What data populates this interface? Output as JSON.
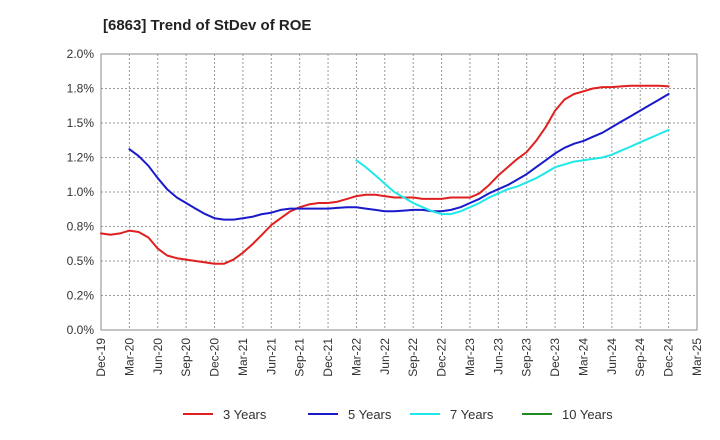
{
  "chart_data": {
    "type": "line",
    "title": "[6863]  Trend of StDev of ROE",
    "xlabel": "",
    "ylabel": "",
    "x_ticks": [
      "Dec-19",
      "Mar-20",
      "Jun-20",
      "Sep-20",
      "Dec-20",
      "Mar-21",
      "Jun-21",
      "Sep-21",
      "Dec-21",
      "Mar-22",
      "Jun-22",
      "Sep-22",
      "Dec-22",
      "Mar-23",
      "Jun-23",
      "Sep-23",
      "Dec-23",
      "Mar-24",
      "Jun-24",
      "Sep-24",
      "Dec-24",
      "Mar-25"
    ],
    "y_ticks": [
      "0.0%",
      "0.2%",
      "0.5%",
      "0.8%",
      "1.0%",
      "1.2%",
      "1.5%",
      "1.8%",
      "2.0%"
    ],
    "ylim": [
      0,
      2.0
    ],
    "grid": true,
    "legend_position": "bottom",
    "series": [
      {
        "name": "3 Years",
        "color": "#e02020",
        "points": [
          [
            0,
            0.7
          ],
          [
            0.33,
            0.69
          ],
          [
            0.67,
            0.7
          ],
          [
            1,
            0.72
          ],
          [
            1.33,
            0.71
          ],
          [
            1.67,
            0.67
          ],
          [
            2,
            0.59
          ],
          [
            2.33,
            0.54
          ],
          [
            2.67,
            0.52
          ],
          [
            3,
            0.51
          ],
          [
            3.33,
            0.5
          ],
          [
            3.67,
            0.49
          ],
          [
            4,
            0.48
          ],
          [
            4.33,
            0.48
          ],
          [
            4.67,
            0.51
          ],
          [
            5,
            0.56
          ],
          [
            5.33,
            0.62
          ],
          [
            5.67,
            0.69
          ],
          [
            6,
            0.76
          ],
          [
            6.33,
            0.81
          ],
          [
            6.67,
            0.86
          ],
          [
            7,
            0.89
          ],
          [
            7.33,
            0.91
          ],
          [
            7.67,
            0.92
          ],
          [
            8,
            0.92
          ],
          [
            8.33,
            0.93
          ],
          [
            8.67,
            0.95
          ],
          [
            9,
            0.97
          ],
          [
            9.33,
            0.98
          ],
          [
            9.67,
            0.98
          ],
          [
            10,
            0.97
          ],
          [
            10.33,
            0.96
          ],
          [
            10.67,
            0.96
          ],
          [
            11,
            0.96
          ],
          [
            11.33,
            0.95
          ],
          [
            11.67,
            0.95
          ],
          [
            12,
            0.95
          ],
          [
            12.33,
            0.96
          ],
          [
            12.67,
            0.96
          ],
          [
            13,
            0.96
          ],
          [
            13.33,
            0.99
          ],
          [
            13.67,
            1.05
          ],
          [
            14,
            1.12
          ],
          [
            14.33,
            1.18
          ],
          [
            14.67,
            1.24
          ],
          [
            15,
            1.29
          ],
          [
            15.33,
            1.37
          ],
          [
            15.67,
            1.47
          ],
          [
            16,
            1.59
          ],
          [
            16.33,
            1.67
          ],
          [
            16.67,
            1.71
          ],
          [
            17,
            1.73
          ],
          [
            17.33,
            1.75
          ],
          [
            17.67,
            1.76
          ],
          [
            18,
            1.76
          ],
          [
            18.33,
            1.765
          ],
          [
            18.67,
            1.77
          ],
          [
            19,
            1.77
          ],
          [
            19.33,
            1.77
          ],
          [
            19.67,
            1.77
          ],
          [
            20,
            1.765
          ]
        ]
      },
      {
        "name": "5 Years",
        "color": "#1a1acc",
        "points": [
          [
            1,
            1.31
          ],
          [
            1.33,
            1.26
          ],
          [
            1.67,
            1.19
          ],
          [
            2,
            1.1
          ],
          [
            2.33,
            1.02
          ],
          [
            2.67,
            0.96
          ],
          [
            3,
            0.92
          ],
          [
            3.33,
            0.88
          ],
          [
            3.67,
            0.84
          ],
          [
            4,
            0.81
          ],
          [
            4.33,
            0.8
          ],
          [
            4.67,
            0.8
          ],
          [
            5,
            0.81
          ],
          [
            5.33,
            0.82
          ],
          [
            5.67,
            0.84
          ],
          [
            6,
            0.85
          ],
          [
            6.33,
            0.87
          ],
          [
            6.67,
            0.88
          ],
          [
            7,
            0.88
          ],
          [
            7.33,
            0.88
          ],
          [
            7.67,
            0.88
          ],
          [
            8,
            0.88
          ],
          [
            8.33,
            0.885
          ],
          [
            8.67,
            0.89
          ],
          [
            9,
            0.89
          ],
          [
            9.33,
            0.88
          ],
          [
            9.67,
            0.87
          ],
          [
            10,
            0.86
          ],
          [
            10.33,
            0.86
          ],
          [
            10.67,
            0.865
          ],
          [
            11,
            0.87
          ],
          [
            11.33,
            0.87
          ],
          [
            11.67,
            0.86
          ],
          [
            12,
            0.86
          ],
          [
            12.33,
            0.87
          ],
          [
            12.67,
            0.89
          ],
          [
            13,
            0.92
          ],
          [
            13.33,
            0.95
          ],
          [
            13.67,
            0.99
          ],
          [
            14,
            1.02
          ],
          [
            14.33,
            1.05
          ],
          [
            14.67,
            1.09
          ],
          [
            15,
            1.13
          ],
          [
            15.33,
            1.18
          ],
          [
            15.67,
            1.23
          ],
          [
            16,
            1.28
          ],
          [
            16.33,
            1.32
          ],
          [
            16.67,
            1.35
          ],
          [
            17,
            1.37
          ],
          [
            17.33,
            1.4
          ],
          [
            17.67,
            1.43
          ],
          [
            18,
            1.47
          ],
          [
            18.33,
            1.51
          ],
          [
            18.67,
            1.55
          ],
          [
            19,
            1.59
          ],
          [
            19.33,
            1.63
          ],
          [
            19.67,
            1.67
          ],
          [
            20,
            1.71
          ]
        ]
      },
      {
        "name": "7 Years",
        "color": "#20e8e8",
        "points": [
          [
            9,
            1.23
          ],
          [
            9.33,
            1.18
          ],
          [
            9.67,
            1.12
          ],
          [
            10,
            1.06
          ],
          [
            10.33,
            1.0
          ],
          [
            10.67,
            0.96
          ],
          [
            11,
            0.92
          ],
          [
            11.33,
            0.89
          ],
          [
            11.67,
            0.86
          ],
          [
            12,
            0.84
          ],
          [
            12.33,
            0.84
          ],
          [
            12.67,
            0.86
          ],
          [
            13,
            0.89
          ],
          [
            13.33,
            0.92
          ],
          [
            13.67,
            0.96
          ],
          [
            14,
            0.99
          ],
          [
            14.33,
            1.02
          ],
          [
            14.67,
            1.04
          ],
          [
            15,
            1.07
          ],
          [
            15.33,
            1.1
          ],
          [
            15.67,
            1.14
          ],
          [
            16,
            1.18
          ],
          [
            16.33,
            1.2
          ],
          [
            16.67,
            1.22
          ],
          [
            17,
            1.23
          ],
          [
            17.33,
            1.24
          ],
          [
            17.67,
            1.25
          ],
          [
            18,
            1.27
          ],
          [
            18.33,
            1.3
          ],
          [
            18.67,
            1.33
          ],
          [
            19,
            1.36
          ],
          [
            19.33,
            1.39
          ],
          [
            19.67,
            1.42
          ],
          [
            20,
            1.45
          ]
        ]
      },
      {
        "name": "10 Years",
        "color": "#1f8a1f",
        "points": []
      }
    ]
  }
}
